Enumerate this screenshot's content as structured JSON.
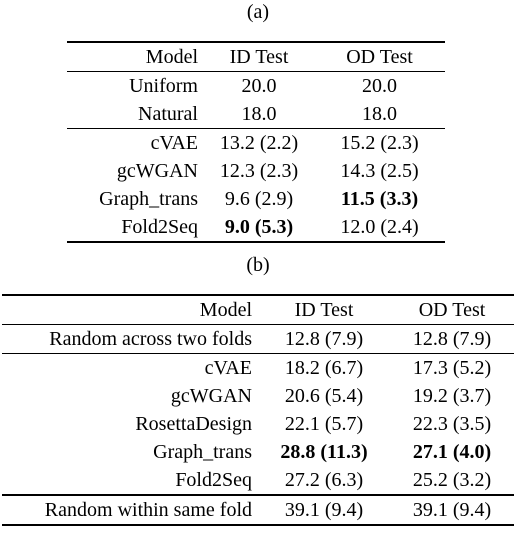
{
  "table_a": {
    "caption": "(a)",
    "headers": [
      "Model",
      "ID Test",
      "OD Test"
    ],
    "rows": [
      {
        "model": "Uniform",
        "id": "20.0",
        "od": "20.0"
      },
      {
        "model": "Natural",
        "id": "18.0",
        "od": "18.0"
      },
      {
        "model": "cVAE",
        "id": "13.2 (2.2)",
        "od": "15.2 (2.3)"
      },
      {
        "model": "gcWGAN",
        "id": "12.3 (2.3)",
        "od": "14.3 (2.5)"
      },
      {
        "model": "Graph_trans",
        "id": "9.6 (2.9)",
        "od": "11.5 (3.3)"
      },
      {
        "model": "Fold2Seq",
        "id": "9.0 (5.3)",
        "od": "12.0 (2.4)"
      }
    ]
  },
  "table_b": {
    "caption": "(b)",
    "headers": [
      "Model",
      "ID Test",
      "OD Test"
    ],
    "rows": [
      {
        "model": "Random across two folds",
        "id": "12.8 (7.9)",
        "od": "12.8 (7.9)"
      },
      {
        "model": "cVAE",
        "id": "18.2 (6.7)",
        "od": "17.3 (5.2)"
      },
      {
        "model": "gcWGAN",
        "id": "20.6 (5.4)",
        "od": "19.2 (3.7)"
      },
      {
        "model": "RosettaDesign",
        "id": "22.1 (5.7)",
        "od": "22.3 (3.5)"
      },
      {
        "model": "Graph_trans",
        "id": "28.8 (11.3)",
        "od": "27.1 (4.0)"
      },
      {
        "model": "Fold2Seq",
        "id": "27.2 (6.3)",
        "od": "25.2 (3.2)"
      },
      {
        "model": "Random within same fold",
        "id": "39.1 (9.4)",
        "od": "39.1 (9.4)"
      }
    ]
  }
}
